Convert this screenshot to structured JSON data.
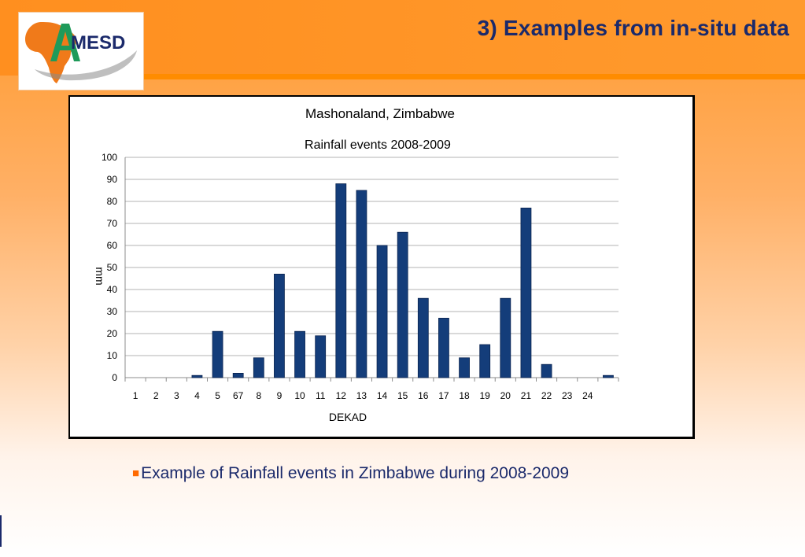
{
  "slide": {
    "title": "3) Examples from in-situ data",
    "caption": "Example of Rainfall events in Zimbabwe during 2008-2009",
    "caption_bullet": "■"
  },
  "logo": {
    "text": "MESD",
    "letter": "A",
    "colors": {
      "continent": "#f07a1a",
      "letter": "#1f9a5a",
      "text": "#1b2a6b",
      "swoosh": "#6b6b6b"
    }
  },
  "colors": {
    "bar": "#143d7a",
    "title": "#1b2a6b",
    "bullet": "#ff6a00"
  },
  "chart_data": {
    "type": "bar",
    "title": "Mashonaland, Zimbabwe",
    "subtitle": "Rainfall events  2008-2009",
    "xlabel": "DEKAD",
    "ylabel": "mm",
    "ylim": [
      0,
      100
    ],
    "yticks": [
      0,
      10,
      20,
      30,
      40,
      50,
      60,
      70,
      80,
      90,
      100
    ],
    "grid": true,
    "categories": [
      "1",
      "2",
      "3",
      "4",
      "5",
      "67",
      "8",
      "9",
      "10",
      "11",
      "12",
      "13",
      "14",
      "15",
      "16",
      "17",
      "18",
      "19",
      "20",
      "21",
      "22",
      "23",
      "24",
      ""
    ],
    "values": [
      0,
      0,
      0,
      1,
      21,
      2,
      9,
      47,
      21,
      19,
      88,
      85,
      60,
      66,
      36,
      27,
      9,
      15,
      36,
      77,
      6,
      0,
      0,
      1
    ]
  }
}
